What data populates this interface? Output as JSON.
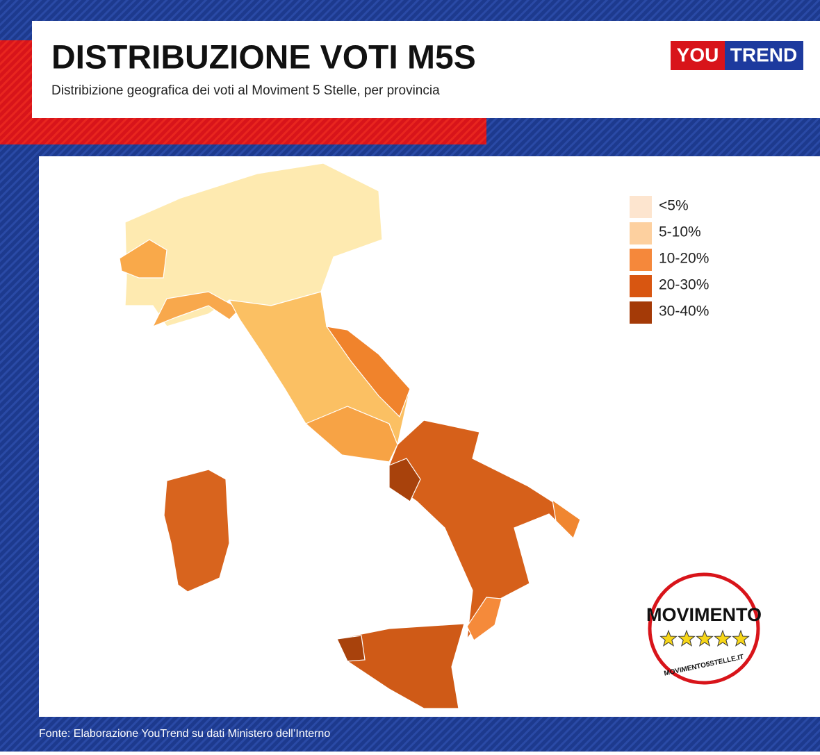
{
  "header": {
    "title": "DISTRIBUZIONE VOTI M5S",
    "subtitle": "Distribizione geografica dei voti al Moviment 5 Stelle, per provincia",
    "logo": {
      "left": "YOU",
      "right": "TREND"
    }
  },
  "legend": {
    "items": [
      {
        "label": "<5%",
        "color": "#fde5cf"
      },
      {
        "label": "5-10%",
        "color": "#fdd09f"
      },
      {
        "label": "10-20%",
        "color": "#f5883b"
      },
      {
        "label": "20-30%",
        "color": "#d85611"
      },
      {
        "label": "30-40%",
        "color": "#a43a07"
      }
    ]
  },
  "badge": {
    "name": "MOVIMENTO",
    "url": "MOVIMENTO5STELLE.IT"
  },
  "source": "Fonte: Elaborazione YouTrend su dati Ministero dell’Interno"
}
